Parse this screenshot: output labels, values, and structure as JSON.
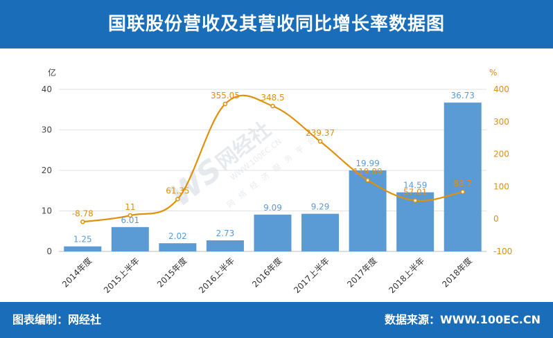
{
  "header": {
    "title": "国联股份营收及其营收同比增长率数据图"
  },
  "footer": {
    "left": "图表编制：网经社",
    "right": "数据来源：WWW.100EC.CN"
  },
  "colors": {
    "header_bg": "#1a6db8",
    "bar": "#5b9bd5",
    "line": "#e0900a",
    "bar_label": "#5b9bd5",
    "line_label": "#e0900a"
  },
  "chart_data": {
    "type": "bar",
    "categories": [
      "2014年度",
      "2015上半年",
      "2015年度",
      "2016上半年",
      "2016年度",
      "2017上半年",
      "2017年度",
      "2018上半年",
      "2018年度"
    ],
    "series": [
      {
        "type": "bar",
        "axis": "left",
        "values": [
          1.25,
          6.01,
          2.02,
          2.73,
          9.09,
          9.29,
          19.99,
          14.59,
          36.73
        ]
      },
      {
        "type": "line",
        "axis": "right",
        "values": [
          -8.78,
          11,
          61.35,
          355.05,
          348.5,
          239.37,
          119.89,
          57.01,
          83.7
        ]
      }
    ],
    "y_left": {
      "label": "亿",
      "ticks": [
        0,
        10,
        20,
        30,
        40
      ],
      "lim": [
        0,
        40
      ]
    },
    "y_right": {
      "label": "%",
      "ticks": [
        -100,
        0,
        100,
        200,
        300,
        400
      ],
      "lim": [
        -100,
        400
      ]
    },
    "grid": true,
    "watermark": "WS网经社 WWW.100EC.CN 网络经济服务平台"
  }
}
